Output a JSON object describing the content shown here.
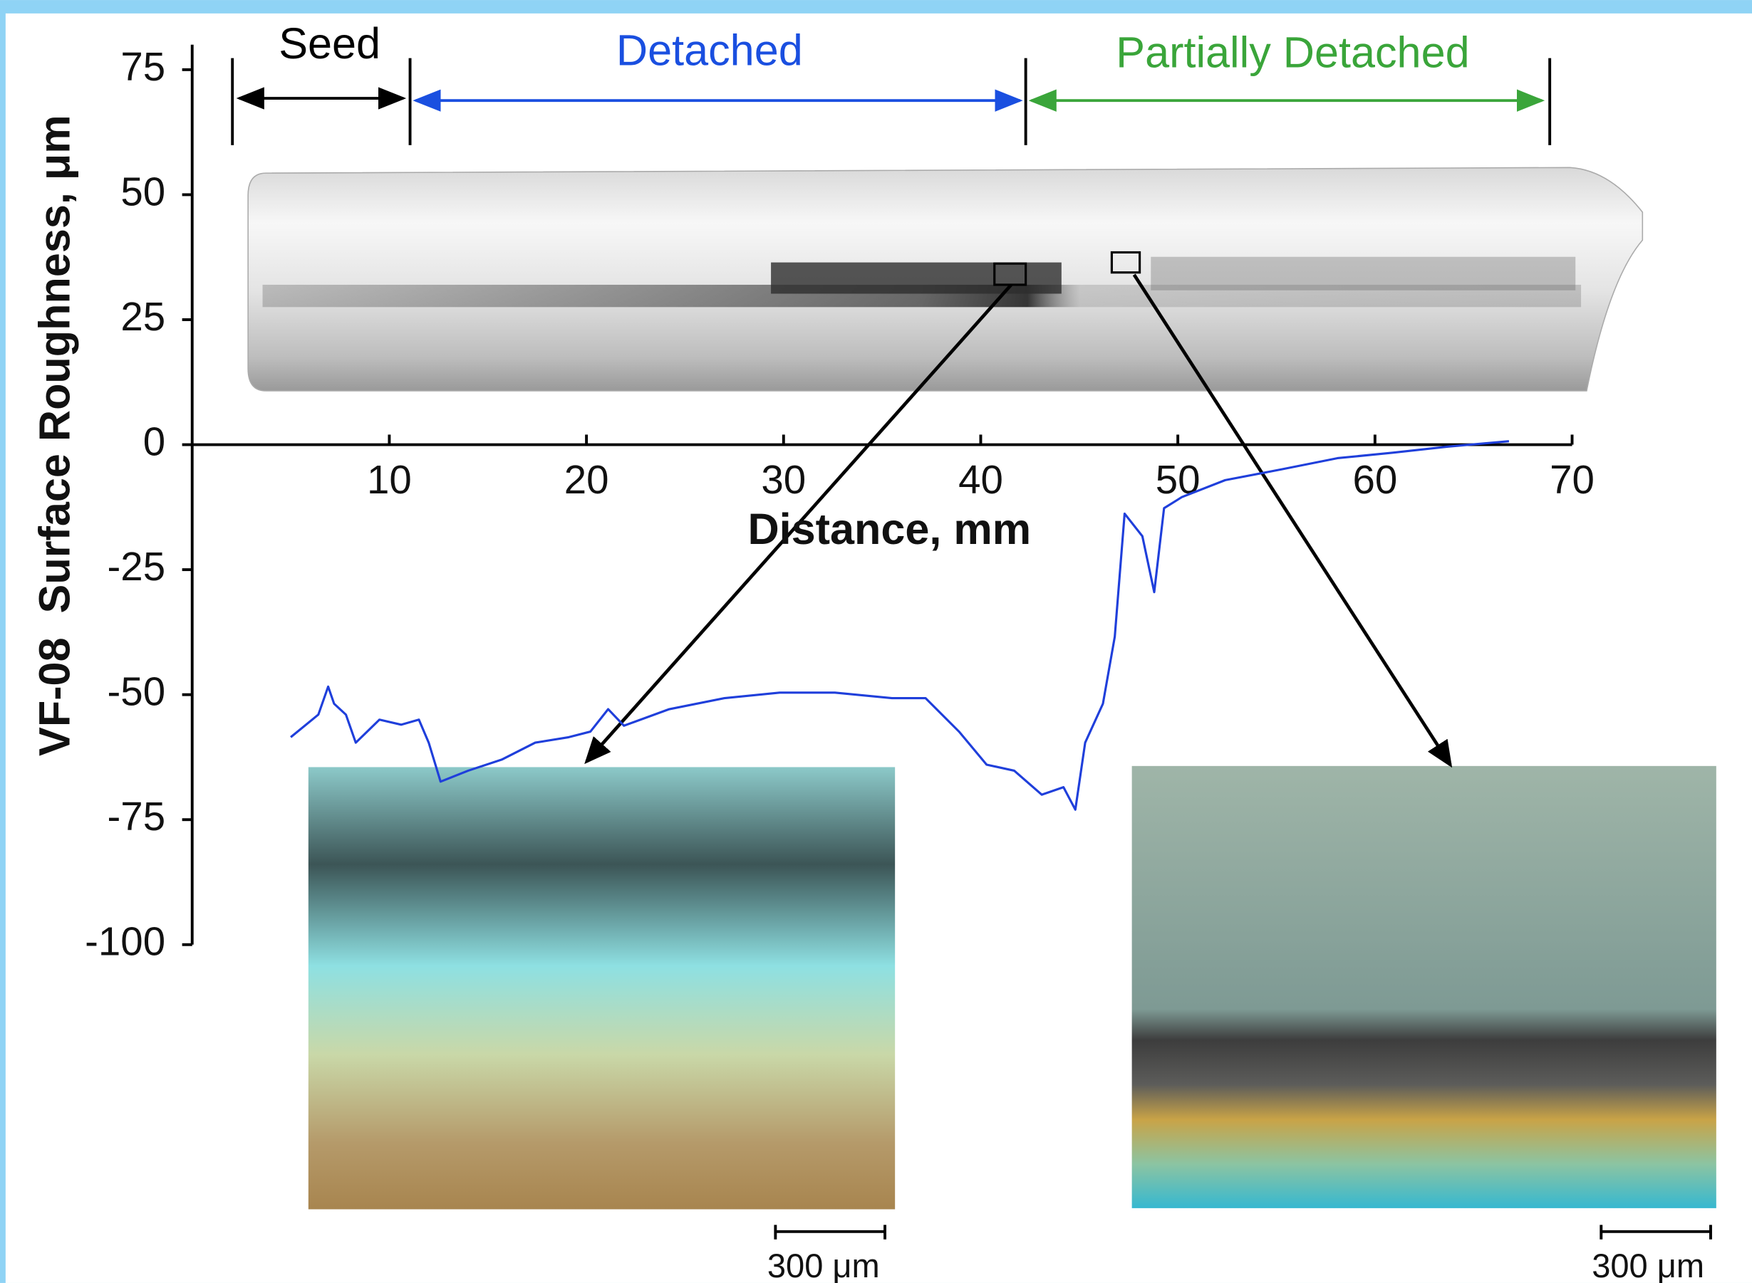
{
  "chart_data": {
    "type": "line",
    "x_label": "Distance, mm",
    "y_label": "VF-08  Surface Roughness, μm",
    "annotations": [
      {
        "text": "Seed",
        "color": "#000000"
      },
      {
        "text": "Detached",
        "color": "#1a4fe0"
      },
      {
        "text": "Partially Detached",
        "color": "#3aa53a"
      }
    ],
    "scale_bars": [
      "300 μm",
      "300 μm"
    ],
    "color": "#1f3fdb",
    "x": [
      5.0,
      6.4,
      6.9,
      7.2,
      7.8,
      8.3,
      9.5,
      10.6,
      11.5,
      12.0,
      12.6,
      14.0,
      15.7,
      17.4,
      19.1,
      20.2,
      21.1,
      21.9,
      24.2,
      27.0,
      29.8,
      32.6,
      35.5,
      37.2,
      38.9,
      40.3,
      41.7,
      43.1,
      44.2,
      44.8,
      45.3,
      46.2,
      46.8,
      47.3,
      48.2,
      48.8,
      49.3,
      50.2,
      52.4,
      55.3,
      58.1,
      60.9,
      63.7,
      66.8
    ],
    "values": [
      -58.5,
      -54,
      -48.4,
      -51.8,
      -54,
      -59.6,
      -55,
      -56,
      -55,
      -59.6,
      -67.4,
      -65.2,
      -63,
      -59.6,
      -58.5,
      -57.4,
      -52.9,
      -56.2,
      -52.9,
      -50.7,
      -49.6,
      -49.6,
      -50.7,
      -50.7,
      -57.4,
      -64,
      -65.2,
      -70,
      -68.5,
      -73,
      -59.6,
      -51.8,
      -38.4,
      -13.8,
      -18.3,
      -29.5,
      -12.7,
      -10.5,
      -7.1,
      -4.9,
      -2.7,
      -1.6,
      -0.4,
      0.7
    ],
    "xlim": [
      0,
      70
    ],
    "ylim": [
      -100,
      80
    ],
    "xticks": [
      10,
      20,
      30,
      40,
      50,
      60,
      70
    ],
    "yticks": [
      75,
      50,
      25,
      0,
      -25,
      -50,
      -75,
      -100
    ]
  }
}
